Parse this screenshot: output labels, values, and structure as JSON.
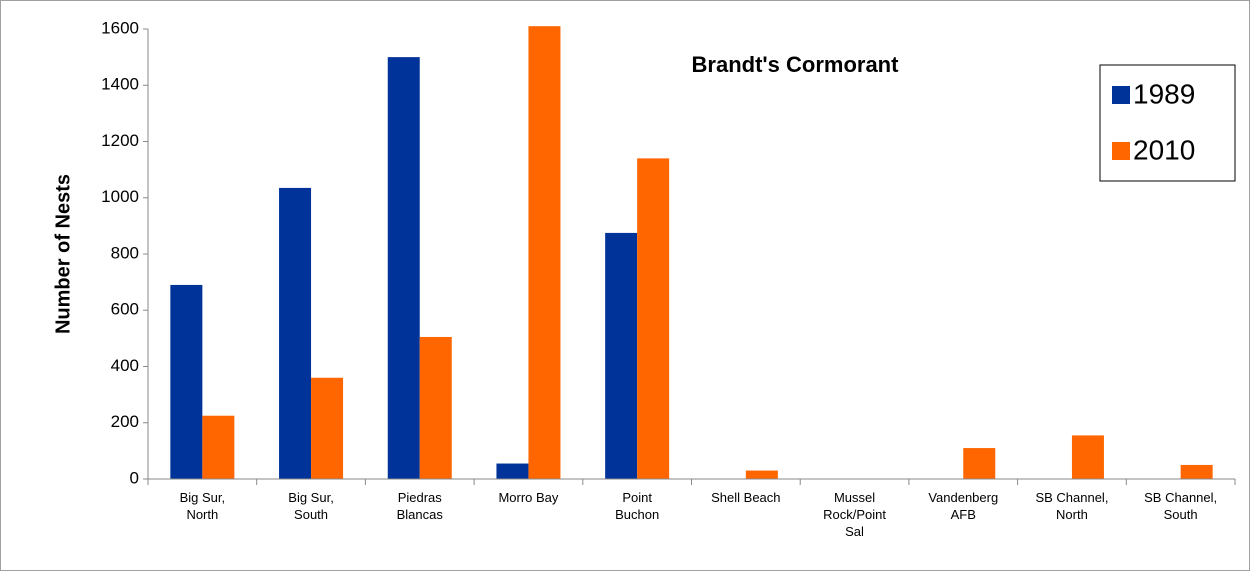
{
  "chart_data": {
    "type": "bar",
    "title": "Brandt's Cormorant",
    "y_label": "Number of Nests",
    "categories": [
      "Big Sur, North",
      "Big Sur, South",
      "Piedras Blancas",
      "Morro Bay",
      "Point Buchon",
      "Shell Beach",
      "Mussel Rock/Point Sal",
      "Vandenberg AFB",
      "SB Channel, North",
      "SB Channel, South"
    ],
    "series": [
      {
        "name": "1989",
        "color": "#003399",
        "values": [
          690,
          1035,
          1500,
          55,
          875,
          0,
          0,
          0,
          0,
          0
        ]
      },
      {
        "name": "2010",
        "color": "#ff6600",
        "values": [
          225,
          360,
          505,
          1610,
          1140,
          30,
          0,
          110,
          155,
          50
        ]
      }
    ],
    "ylim": [
      0,
      1600
    ],
    "yticks": [
      0,
      200,
      400,
      600,
      800,
      1000,
      1200,
      1400,
      1600
    ],
    "grid": false,
    "legend": "upper right"
  }
}
